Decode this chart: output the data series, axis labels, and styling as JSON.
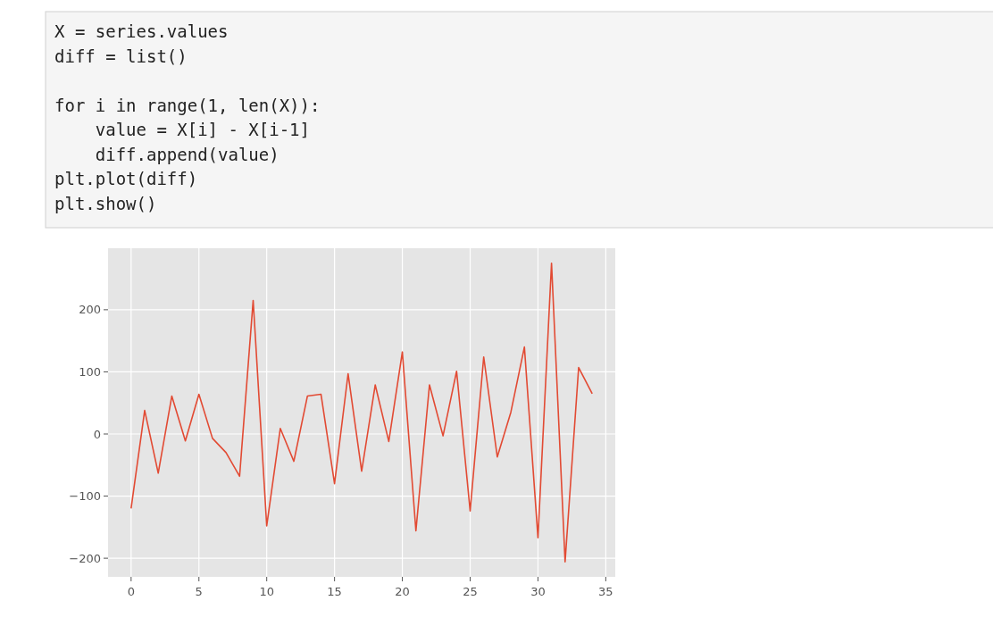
{
  "chart_data": {
    "type": "line",
    "annotations": [
      "X = series.values\ndiff = list()\n\nfor i in range(1, len(X)):\n    value = X[i] - X[i-1]\n    diff.append(value)\nplt.plot(diff)\nplt.show()"
    ],
    "x": [
      0,
      1,
      2,
      3,
      4,
      5,
      6,
      7,
      8,
      9,
      10,
      11,
      12,
      13,
      14,
      15,
      16,
      17,
      18,
      19,
      20,
      21,
      22,
      23,
      24,
      25,
      26,
      27,
      28,
      29,
      30,
      31,
      32,
      33,
      34
    ],
    "series": [
      {
        "color": "#e24a33",
        "values": [
          -120,
          38,
          -63,
          61,
          -11,
          64,
          -7,
          -30,
          -68,
          215,
          -148,
          9,
          -44,
          61,
          64,
          -80,
          97,
          -60,
          79,
          -12,
          132,
          -156,
          79,
          -3,
          101,
          -124,
          124,
          -37,
          35,
          140,
          -167,
          275,
          -206,
          107,
          65
        ]
      }
    ],
    "xlim": [
      -1.7,
      35.7
    ],
    "xticks": [
      0,
      5,
      10,
      15,
      20,
      25,
      30,
      35
    ],
    "ylim": [
      -230,
      299
    ],
    "yticks": [
      {
        "value": -200,
        "label": "−200"
      },
      {
        "value": -100,
        "label": "−100"
      },
      0,
      100,
      200
    ],
    "grid": true
  }
}
